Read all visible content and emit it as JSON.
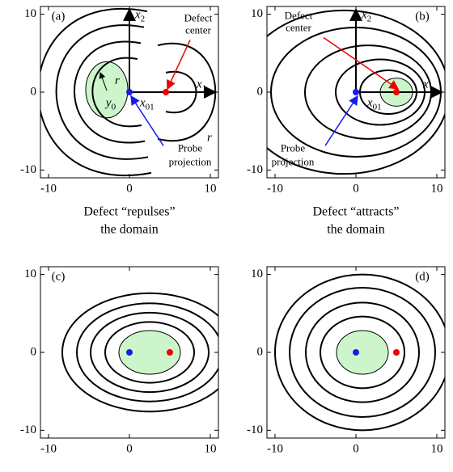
{
  "panels": [
    {
      "label": "(a)",
      "xlim": [
        -11,
        11
      ],
      "ylim": [
        -11,
        11
      ],
      "xticks": [
        -10,
        0,
        10
      ],
      "yticks": [
        -10,
        0,
        10
      ],
      "x2": {
        "base": "x",
        "sub": "2"
      },
      "x1": {
        "base": "x",
        "sub": "1"
      },
      "defect_center": [
        "Defect",
        "center"
      ],
      "probe_projection": [
        "Probe",
        "projection"
      ],
      "r": "r",
      "r_outer": "r",
      "y0": {
        "base": "y",
        "sub": "0"
      },
      "x01": {
        "base": "x",
        "sub": "01"
      },
      "caption": [
        "Defect “repulses”",
        "the domain"
      ]
    },
    {
      "label": "(b)",
      "xlim": [
        -11,
        11
      ],
      "ylim": [
        -11,
        11
      ],
      "xticks": [
        -10,
        0,
        10
      ],
      "yticks": [
        -10,
        0,
        10
      ],
      "x2": {
        "base": "x",
        "sub": "2"
      },
      "x1": {
        "base": "x",
        "sub": "1"
      },
      "defect_center": [
        "Defect",
        "center"
      ],
      "probe_projection": [
        "Probe",
        "projection"
      ],
      "x01": {
        "base": "x",
        "sub": "01"
      },
      "caption": [
        "Defect “attracts”",
        "the domain"
      ]
    },
    {
      "label": "(c)",
      "xlim": [
        -11,
        11
      ],
      "ylim": [
        -11,
        11
      ],
      "xticks": [
        -10,
        0,
        10
      ],
      "yticks": [
        -10,
        0,
        10
      ]
    },
    {
      "label": "(d)",
      "xlim": [
        -11,
        11
      ],
      "ylim": [
        -11,
        11
      ],
      "xticks": [
        -10,
        0,
        10
      ],
      "yticks": [
        -10,
        0,
        10
      ]
    }
  ]
}
